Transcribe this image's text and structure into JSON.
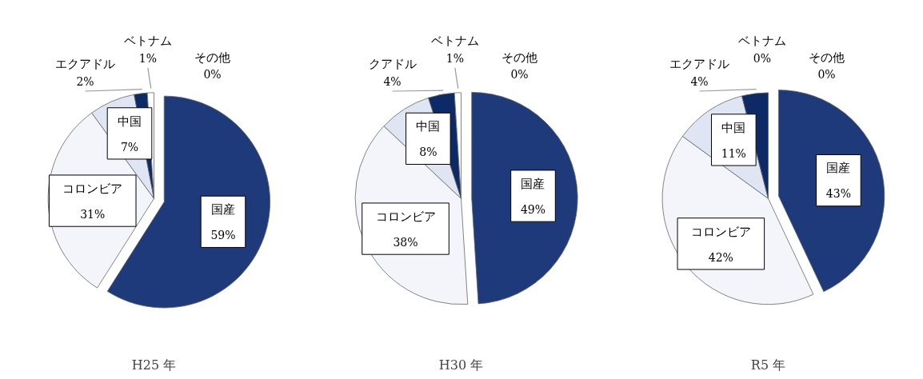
{
  "chart_data": [
    {
      "type": "pie",
      "title": "H25 年",
      "categories": [
        "国産",
        "コロンビア",
        "中国",
        "エクアドル",
        "ベトナム",
        "その他"
      ],
      "values": [
        59,
        31,
        7,
        2,
        1,
        0
      ],
      "value_labels": [
        "59%",
        "31%",
        "7%",
        "2%",
        "1%",
        "0%"
      ],
      "colors": [
        "#1f3a7a",
        "#f3f5fa",
        "#dfe5f2",
        "#0d2a66",
        "#ffffff",
        "#ffffff"
      ],
      "legend": false
    },
    {
      "type": "pie",
      "title": "H30 年",
      "categories": [
        "国産",
        "コロンビア",
        "中国",
        "クアドル",
        "ベトナム",
        "その他"
      ],
      "values": [
        49,
        38,
        8,
        4,
        1,
        0
      ],
      "value_labels": [
        "49%",
        "38%",
        "8%",
        "4%",
        "1%",
        "0%"
      ],
      "colors": [
        "#1f3a7a",
        "#f3f5fa",
        "#dfe5f2",
        "#0d2a66",
        "#ffffff",
        "#ffffff"
      ],
      "legend": false
    },
    {
      "type": "pie",
      "title": "R5 年",
      "categories": [
        "国産",
        "コロンビア",
        "中国",
        "エクアドル",
        "ベトナム",
        "その他"
      ],
      "values": [
        43,
        42,
        11,
        4,
        0,
        0
      ],
      "value_labels": [
        "43%",
        "42%",
        "11%",
        "4%",
        "0%",
        "0%"
      ],
      "colors": [
        "#1f3a7a",
        "#f3f5fa",
        "#dfe5f2",
        "#0d2a66",
        "#ffffff",
        "#e07020"
      ],
      "legend": false
    }
  ]
}
